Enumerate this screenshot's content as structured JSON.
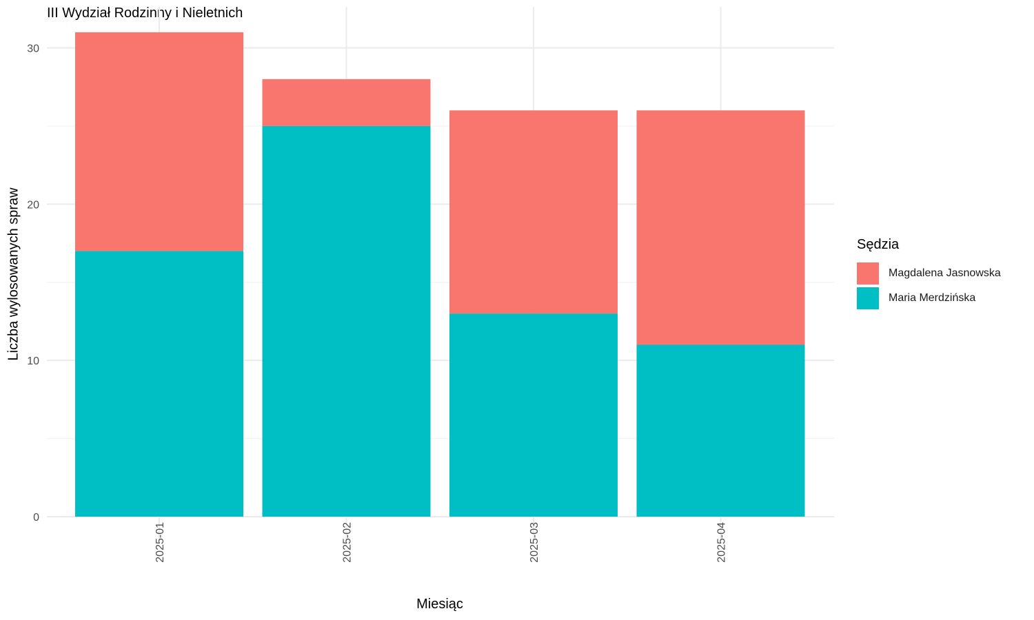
{
  "chart_data": {
    "type": "bar",
    "stacked": true,
    "title": "III Wydział Rodzinny i Nieletnich",
    "xlabel": "Miesiąc",
    "ylabel": "Liczba wylosowanych spraw",
    "categories": [
      "2025-01",
      "2025-02",
      "2025-03",
      "2025-04"
    ],
    "series": [
      {
        "name": "Maria Merdzińska",
        "color": "#00BFC4",
        "values": [
          17,
          25,
          13,
          11
        ]
      },
      {
        "name": "Magdalena Jasnowska",
        "color": "#F8766D",
        "values": [
          14,
          3,
          13,
          15
        ]
      }
    ],
    "ylim": [
      0,
      31
    ],
    "yticks": [
      0,
      10,
      20,
      30
    ],
    "grid": true,
    "legend": {
      "title": "Sędzia",
      "position": "right",
      "entries": [
        {
          "name": "Magdalena Jasnowska",
          "color": "#F8766D"
        },
        {
          "name": "Maria Merdzińska",
          "color": "#00BFC4"
        }
      ]
    }
  }
}
